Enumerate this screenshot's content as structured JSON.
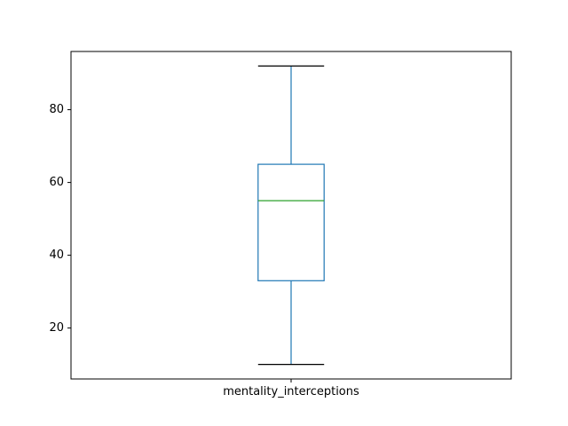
{
  "chart_data": {
    "type": "box",
    "categories": [
      "mentality_interceptions"
    ],
    "boxes": [
      {
        "label": "mentality_interceptions",
        "whisker_low": 10,
        "q1": 33,
        "median": 55,
        "q3": 65,
        "whisker_high": 92
      }
    ],
    "ylim": [
      6,
      96
    ],
    "yticks": [
      20,
      40,
      60,
      80
    ],
    "grid": false,
    "colors": {
      "box": "#1f77b4",
      "median": "#2ca02c",
      "whisker_cap": "#000000",
      "axes": "#000000"
    }
  }
}
